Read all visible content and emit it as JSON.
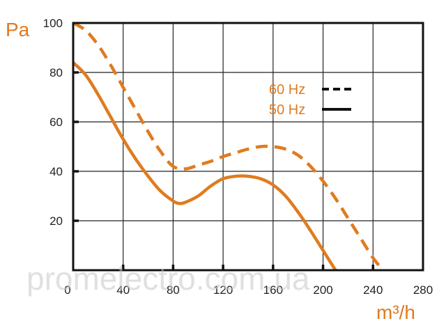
{
  "chart_data": {
    "type": "line",
    "title": "",
    "xlabel": "m³/h",
    "ylabel": "Pa",
    "xlim": [
      0,
      280
    ],
    "ylim": [
      0,
      100
    ],
    "x_ticks": [
      "0",
      "40",
      "80",
      "120",
      "160",
      "200",
      "240",
      "280"
    ],
    "y_ticks": [
      "20",
      "40",
      "60",
      "80",
      "100"
    ],
    "grid": true,
    "legend_position": "top-right",
    "series": [
      {
        "name": "60 Hz",
        "style": "dashed",
        "color": "#e07b1f",
        "x": [
          0,
          10,
          20,
          30,
          40,
          50,
          60,
          70,
          80,
          90,
          100,
          110,
          120,
          130,
          140,
          150,
          160,
          170,
          180,
          190,
          200,
          210,
          220,
          230,
          240,
          248
        ],
        "y": [
          100,
          97,
          91,
          83,
          74,
          65,
          56,
          48,
          42,
          41,
          42.5,
          44,
          46,
          47.5,
          49,
          50,
          50,
          49,
          46.5,
          42,
          36,
          29,
          21,
          13,
          5,
          0
        ]
      },
      {
        "name": "50 Hz",
        "style": "solid",
        "color": "#e07b1f",
        "x": [
          0,
          10,
          20,
          30,
          40,
          50,
          60,
          70,
          80,
          85,
          90,
          100,
          110,
          120,
          130,
          140,
          150,
          160,
          170,
          180,
          190,
          200,
          210
        ],
        "y": [
          84,
          79,
          71,
          62,
          53,
          45,
          38,
          32,
          28,
          27,
          27.5,
          30,
          34,
          37,
          38,
          38,
          37,
          34.5,
          30,
          23.5,
          16,
          8,
          0
        ]
      }
    ],
    "watermark": "promelectro.com.ua"
  }
}
